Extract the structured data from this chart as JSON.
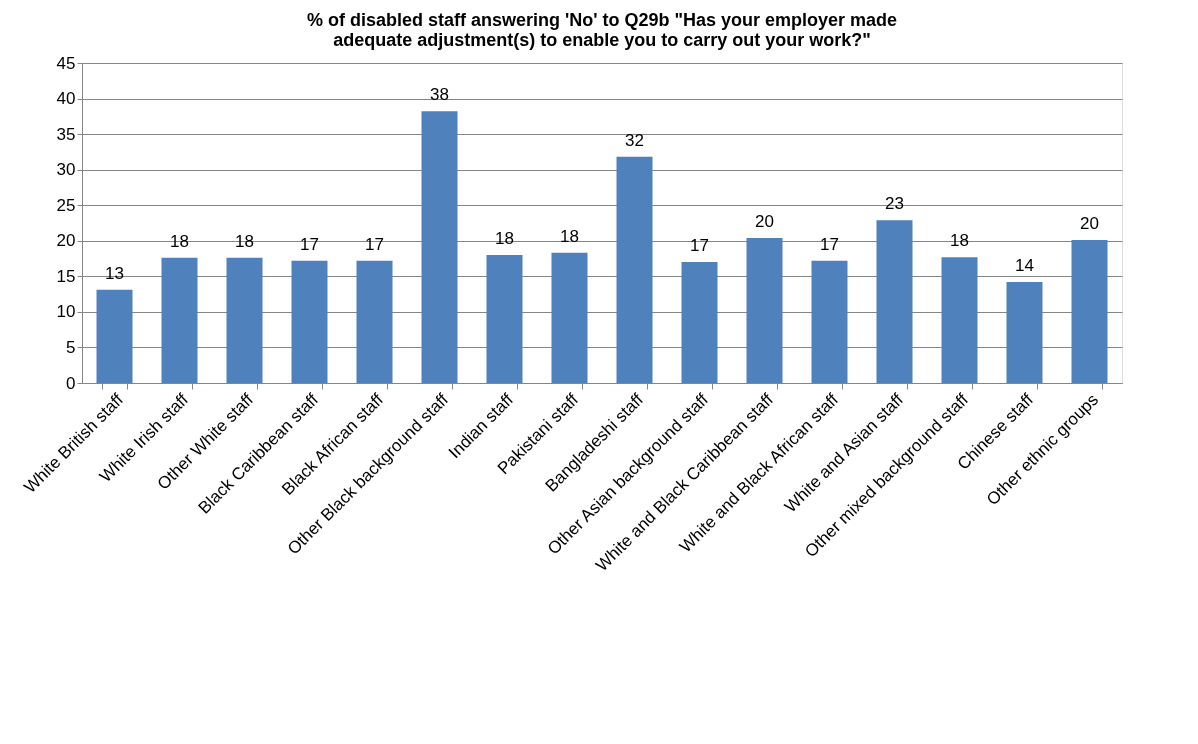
{
  "chart_data": {
    "type": "bar",
    "title": "% of disabled staff answering 'No' to Q29b \"Has your employer made adequate adjustment(s) to enable you to carry out your work?\"",
    "categories": [
      "White British staff",
      "White Irish staff",
      "Other White staff",
      "Black Caribbean staff",
      "Black African staff",
      "Other Black background staff",
      "Indian staff",
      "Pakistani staff",
      "Bangladeshi staff",
      "Other Asian background staff",
      "White and Black Caribbean staff",
      "White and Black African staff",
      "White and Asian staff",
      "Other mixed background staff",
      "Chinese staff",
      "Other ethnic groups"
    ],
    "values": [
      13.1,
      17.6,
      17.6,
      17.2,
      17.2,
      38.2,
      18.0,
      18.3,
      31.8,
      17.0,
      20.4,
      17.2,
      22.9,
      17.7,
      14.2,
      20.1
    ],
    "value_labels": [
      "13",
      "18",
      "18",
      "17",
      "17",
      "38",
      "18",
      "18",
      "32",
      "17",
      "20",
      "17",
      "23",
      "18",
      "14",
      "20"
    ],
    "color": "#4f81bd",
    "ylim": [
      0,
      45
    ],
    "yticks": [
      0,
      5,
      10,
      15,
      20,
      25,
      30,
      35,
      40,
      45
    ],
    "grid": "y"
  }
}
